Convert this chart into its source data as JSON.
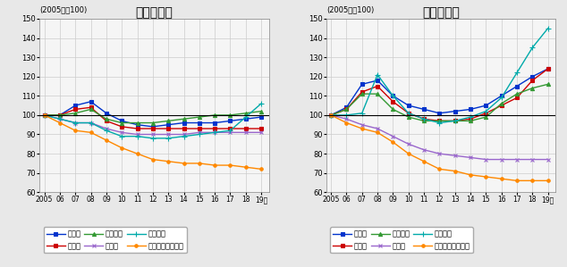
{
  "years": [
    2005,
    2006,
    2007,
    2008,
    2009,
    2010,
    2011,
    2012,
    2013,
    2014,
    2015,
    2016,
    2017,
    2018,
    2019
  ],
  "residential": {
    "tokyo": [
      100,
      100,
      105,
      107,
      101,
      97,
      95,
      94,
      95,
      96,
      96,
      96,
      97,
      98,
      99
    ],
    "osaka": [
      100,
      100,
      103,
      104,
      97,
      94,
      93,
      93,
      93,
      93,
      93,
      93,
      93,
      93,
      93
    ],
    "nagoya": [
      100,
      100,
      101,
      103,
      98,
      96,
      96,
      96,
      97,
      98,
      99,
      100,
      100,
      101,
      102
    ],
    "chiho": [
      100,
      98,
      96,
      96,
      93,
      91,
      90,
      90,
      90,
      90,
      91,
      91,
      91,
      91,
      91
    ],
    "chihoshi": [
      100,
      98,
      96,
      96,
      92,
      89,
      89,
      88,
      88,
      89,
      90,
      91,
      92,
      99,
      106
    ],
    "chihohoka": [
      100,
      96,
      92,
      91,
      87,
      83,
      80,
      77,
      76,
      75,
      75,
      74,
      74,
      73,
      72
    ]
  },
  "commercial": {
    "tokyo": [
      100,
      104,
      116,
      118,
      110,
      105,
      103,
      101,
      102,
      103,
      105,
      110,
      115,
      120,
      124
    ],
    "osaka": [
      100,
      103,
      112,
      115,
      107,
      101,
      98,
      97,
      97,
      98,
      101,
      105,
      109,
      118,
      124
    ],
    "nagoya": [
      100,
      103,
      111,
      111,
      103,
      99,
      97,
      97,
      97,
      97,
      99,
      106,
      111,
      114,
      116
    ],
    "chiho": [
      100,
      98,
      95,
      93,
      89,
      85,
      82,
      80,
      79,
      78,
      77,
      77,
      77,
      77,
      77
    ],
    "chihoshi": [
      100,
      100,
      101,
      121,
      110,
      101,
      98,
      96,
      97,
      99,
      102,
      109,
      122,
      135,
      145
    ],
    "chihohoka": [
      100,
      96,
      93,
      91,
      86,
      80,
      76,
      72,
      71,
      69,
      68,
      67,
      66,
      66,
      66
    ]
  },
  "colors": {
    "tokyo": "#0033CC",
    "osaka": "#CC0000",
    "nagoya": "#339933",
    "chiho": "#9966CC",
    "chihoshi": "#00AAAA",
    "chihohoka": "#FF8800"
  },
  "label_tokyo": "東京圈",
  "label_osaka": "大阪圈",
  "label_nagoya": "名古屋圈",
  "label_chiho": "地方圈",
  "label_chihoshi": "地方四市",
  "label_chihohoka": "地方圈（その他）",
  "title_residential": "（住宅地）",
  "title_commercial": "（商業地）",
  "subtitle": "(2005年＝100)",
  "year_label": "年",
  "ylim": [
    60,
    150
  ],
  "yticks": [
    60,
    70,
    80,
    90,
    100,
    110,
    120,
    130,
    140,
    150
  ],
  "background_color": "#e8e8e8",
  "plot_bg_color": "#f5f5f5"
}
